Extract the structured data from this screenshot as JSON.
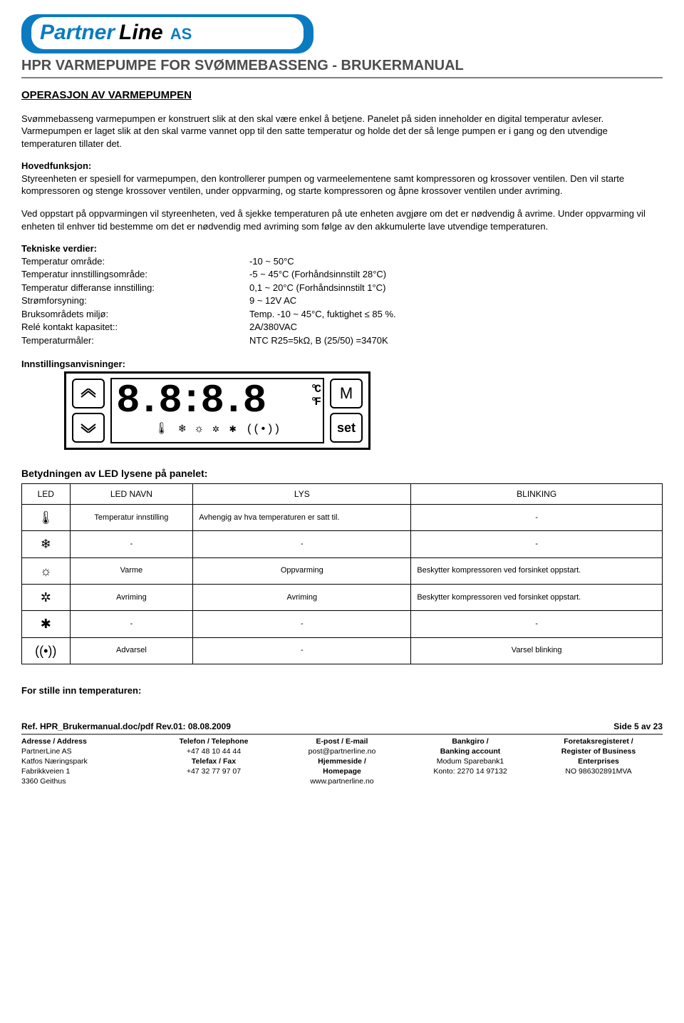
{
  "logo": {
    "part1": "Partner",
    "part2": "Line",
    "suffix": "AS"
  },
  "doc_title": "HPR VARMEPUMPE FOR SVØMMEBASSENG - BRUKERMANUAL",
  "section_heading": "OPERASJON AV VARMEPUMPEN",
  "intro": "Svømmebasseng varmepumpen er konstruert slik at den skal være enkel å betjene. Panelet på siden inneholder en digital temperatur avleser. Varmepumpen er laget slik at den skal varme vannet opp til den satte temperatur og holde det der så lenge pumpen er i gang og den utvendige temperaturen tillater det.",
  "hoved_heading": "Hovedfunksjon:",
  "hoved_body": "Styreenheten er spesiell for varmepumpen, den kontrollerer pumpen og varmeelementene samt kompressoren og krossover ventilen. Den vil starte kompressoren og stenge krossover ventilen, under oppvarming, og starte kompressoren og åpne krossover ventilen under avriming.",
  "para3": "Ved oppstart på oppvarmingen vil styreenheten, ved å sjekke temperaturen på ute enheten avgjøre om det er nødvendig å avrime. Under oppvarming vil enheten til enhver tid bestemme om det er nødvendig med avriming som følge av den akkumulerte lave utvendige temperaturen.",
  "tech_heading": "Tekniske verdier:",
  "tech": [
    {
      "label": "Temperatur område:",
      "value": "-10 ~ 50°C"
    },
    {
      "label": "Temperatur innstillingsområde:",
      "value": "-5 ~ 45°C (Forhåndsinnstilt 28°C)"
    },
    {
      "label": "Temperatur differanse innstilling:",
      "value": "0,1 ~ 20°C (Forhåndsinnstilt 1°C)"
    },
    {
      "label": "Strømforsyning:",
      "value": "9 ~ 12V AC"
    },
    {
      "label": "Bruksområdets miljø:",
      "value": "Temp. -10 ~ 45°C, fuktighet ≤ 85 %."
    },
    {
      "label": "Relé kontakt kapasitet::",
      "value": "2A/380VAC"
    },
    {
      "label": "Temperaturmåler:",
      "value": "NTC R25=5kΩ, B (25/50) =3470K"
    }
  ],
  "settings_heading": "Innstillingsanvisninger:",
  "panel": {
    "digits": "8.8:8.8",
    "unit_c": "°C",
    "unit_f": "°F",
    "btn_m": "M",
    "btn_set": "set",
    "icons": [
      "🌡",
      "❄",
      "☼",
      "✲",
      "✱",
      "((•))"
    ]
  },
  "led_heading": "Betydningen av LED lysene på panelet:",
  "led_table": {
    "headers": [
      "LED",
      "LED NAVN",
      "LYS",
      "BLINKING"
    ],
    "rows": [
      {
        "icon": "🌡",
        "name": "Temperatur innstilling",
        "lys": "Avhengig av hva temperaturen er satt til.",
        "blink": "-"
      },
      {
        "icon": "❄",
        "name": "-",
        "lys": "-",
        "blink": "-"
      },
      {
        "icon": "☼",
        "name": "Varme",
        "lys": "Oppvarming",
        "blink": "Beskytter kompressoren ved forsinket oppstart."
      },
      {
        "icon": "✲",
        "name": "Avriming",
        "lys": "Avriming",
        "blink": "Beskytter kompressoren ved forsinket oppstart."
      },
      {
        "icon": "✱",
        "name": "-",
        "lys": "-",
        "blink": "-"
      },
      {
        "icon": "((•))",
        "name": "Advarsel",
        "lys": "-",
        "blink": "Varsel blinking"
      }
    ]
  },
  "set_temp_heading": "For stille inn temperaturen:",
  "footer": {
    "ref": "Ref. HPR_Brukermanual.doc/pdf    Rev.01: 08.08.2009",
    "page": "Side 5 av 23",
    "cols": [
      {
        "hd": "Adresse / Address",
        "l1": "PartnerLine AS",
        "l2": "Katfos Næringspark",
        "l3": "Fabrikkveien 1",
        "l4": "3360 Geithus"
      },
      {
        "hd": "Telefon / Telephone",
        "l1": "+47 48 10 44 44",
        "l2": "Telefax / Fax",
        "l3": "+47 32 77 97 07",
        "l4": ""
      },
      {
        "hd": "E-post / E-mail",
        "l1": "post@partnerline.no",
        "l2": "Hjemmeside /",
        "l3": "Homepage",
        "l4": "www.partnerline.no"
      },
      {
        "hd": "Bankgiro /",
        "l1": "Banking account",
        "l2": "Modum Sparebank1",
        "l3": "Konto: 2270 14 97132",
        "l4": ""
      },
      {
        "hd": "Foretaksregisteret /",
        "l1": "Register of Business",
        "l2": "Enterprises",
        "l3": "NO 986302891MVA",
        "l4": ""
      }
    ]
  }
}
